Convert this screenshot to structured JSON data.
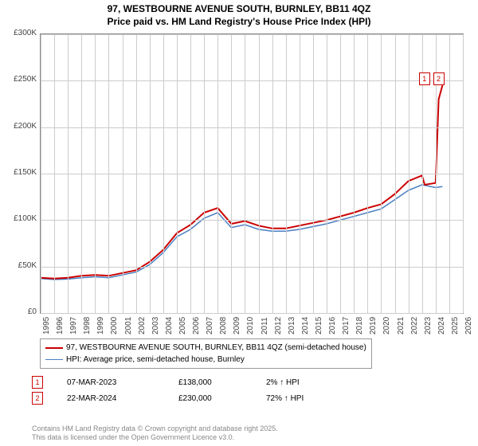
{
  "title_line1": "97, WESTBOURNE AVENUE SOUTH, BURNLEY, BB11 4QZ",
  "title_line2": "Price paid vs. HM Land Registry's House Price Index (HPI)",
  "chart": {
    "type": "line",
    "x_years": [
      1995,
      1996,
      1997,
      1998,
      1999,
      2000,
      2001,
      2002,
      2003,
      2004,
      2005,
      2006,
      2007,
      2008,
      2009,
      2010,
      2011,
      2012,
      2013,
      2014,
      2015,
      2016,
      2017,
      2018,
      2019,
      2020,
      2021,
      2022,
      2023,
      2024,
      2025,
      2026
    ],
    "ylim": [
      0,
      300000
    ],
    "ytick_step": 50000,
    "ytick_labels": [
      "£0",
      "£50K",
      "£100K",
      "£150K",
      "£200K",
      "£250K",
      "£300K"
    ],
    "background_color": "#ffffff",
    "grid_color": "#cccccc",
    "border_color": "#888888",
    "series": [
      {
        "name": "hpi",
        "label": "HPI: Average price, semi-detached house, Burnley",
        "color": "#4a7fc1",
        "line_width": 1.5,
        "data": [
          [
            1995,
            37000
          ],
          [
            1996,
            36000
          ],
          [
            1997,
            36500
          ],
          [
            1998,
            38000
          ],
          [
            1999,
            39000
          ],
          [
            2000,
            38000
          ],
          [
            2001,
            41000
          ],
          [
            2002,
            44000
          ],
          [
            2003,
            52000
          ],
          [
            2004,
            65000
          ],
          [
            2005,
            82000
          ],
          [
            2006,
            90000
          ],
          [
            2007,
            102000
          ],
          [
            2008,
            108000
          ],
          [
            2009,
            92000
          ],
          [
            2010,
            95000
          ],
          [
            2011,
            90000
          ],
          [
            2012,
            88000
          ],
          [
            2013,
            88000
          ],
          [
            2014,
            90000
          ],
          [
            2015,
            93000
          ],
          [
            2016,
            96000
          ],
          [
            2017,
            100000
          ],
          [
            2018,
            104000
          ],
          [
            2019,
            108000
          ],
          [
            2020,
            112000
          ],
          [
            2021,
            122000
          ],
          [
            2022,
            132000
          ],
          [
            2023,
            138000
          ],
          [
            2024,
            135000
          ],
          [
            2024.5,
            136000
          ]
        ]
      },
      {
        "name": "price_paid",
        "label": "97, WESTBOURNE AVENUE SOUTH, BURNLEY, BB11 4QZ (semi-detached house)",
        "color": "#cc0000",
        "line_width": 2,
        "data": [
          [
            1995,
            38000
          ],
          [
            1996,
            37000
          ],
          [
            1997,
            38000
          ],
          [
            1998,
            40000
          ],
          [
            1999,
            41000
          ],
          [
            2000,
            40000
          ],
          [
            2001,
            43000
          ],
          [
            2002,
            46000
          ],
          [
            2003,
            55000
          ],
          [
            2004,
            68000
          ],
          [
            2005,
            86000
          ],
          [
            2006,
            95000
          ],
          [
            2007,
            108000
          ],
          [
            2008,
            113000
          ],
          [
            2009,
            96000
          ],
          [
            2010,
            99000
          ],
          [
            2011,
            94000
          ],
          [
            2012,
            91000
          ],
          [
            2013,
            91000
          ],
          [
            2014,
            94000
          ],
          [
            2015,
            97000
          ],
          [
            2016,
            100000
          ],
          [
            2017,
            104000
          ],
          [
            2018,
            108000
          ],
          [
            2019,
            113000
          ],
          [
            2020,
            117000
          ],
          [
            2021,
            128000
          ],
          [
            2022,
            142000
          ],
          [
            2023,
            148000
          ],
          [
            2023.2,
            138000
          ],
          [
            2024,
            140000
          ],
          [
            2024.22,
            230000
          ],
          [
            2024.5,
            245000
          ]
        ]
      }
    ],
    "sale_markers": [
      {
        "idx": "1",
        "x": 2023.18,
        "y_box": 252000,
        "color": "#cc0000"
      },
      {
        "idx": "2",
        "x": 2024.22,
        "y_box": 252000,
        "color": "#cc0000"
      }
    ]
  },
  "sales": [
    {
      "idx": "1",
      "date": "07-MAR-2023",
      "price": "£138,000",
      "hpi": "2% ↑ HPI",
      "color": "#cc0000"
    },
    {
      "idx": "2",
      "date": "22-MAR-2024",
      "price": "£230,000",
      "hpi": "72% ↑ HPI",
      "color": "#cc0000"
    }
  ],
  "footer_line1": "Contains HM Land Registry data © Crown copyright and database right 2025.",
  "footer_line2": "This data is licensed under the Open Government Licence v3.0."
}
